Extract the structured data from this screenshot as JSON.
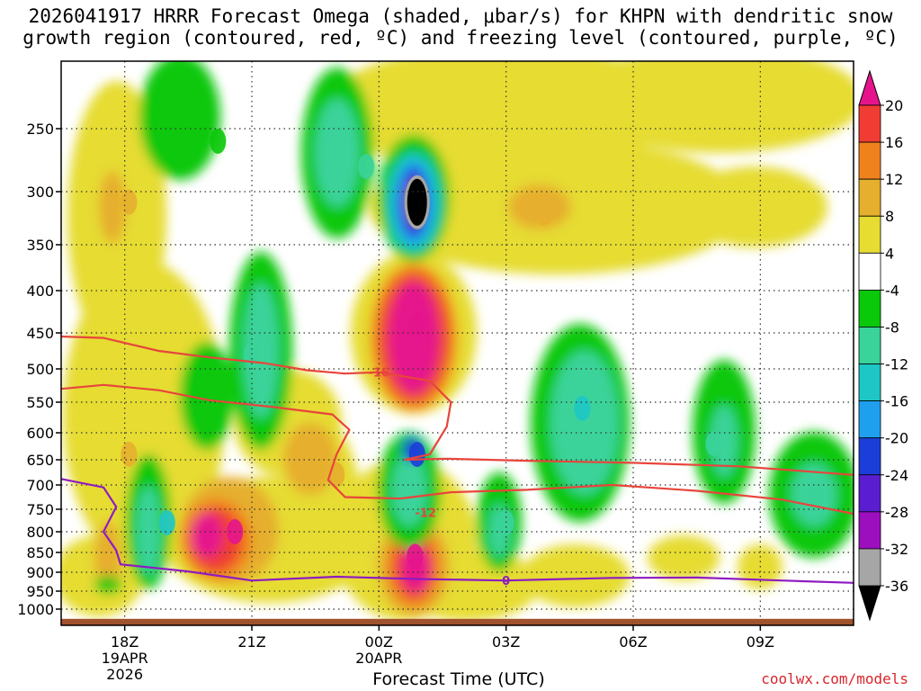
{
  "title": {
    "line1": "2026041917 HRRR Forecast Omega (shaded, μbar/s) for KHPN with dendritic snow",
    "line2": "growth region (contoured, red, ºC) and freezing level (contoured, purple, ºC)"
  },
  "credit": "coolwx.com/models",
  "chart_data": {
    "type": "heatmap",
    "title": "2026041917 HRRR Forecast Omega (shaded, μbar/s) for KHPN with dendritic snow growth region (contoured, red, ºC) and freezing level (contoured, purple, ºC)",
    "xlabel": "Forecast Time (UTC)",
    "ylabel": "",
    "x_range_hours": [
      16.5,
      35.2
    ],
    "x_ticks": [
      {
        "hour": 18,
        "label": "18Z",
        "sub1": "19APR",
        "sub2": "2026"
      },
      {
        "hour": 21,
        "label": "21Z",
        "sub1": "",
        "sub2": ""
      },
      {
        "hour": 24,
        "label": "00Z",
        "sub1": "20APR",
        "sub2": ""
      },
      {
        "hour": 27,
        "label": "03Z",
        "sub1": "",
        "sub2": ""
      },
      {
        "hour": 30,
        "label": "06Z",
        "sub1": "",
        "sub2": ""
      },
      {
        "hour": 33,
        "label": "09Z",
        "sub1": "",
        "sub2": ""
      }
    ],
    "y_range_hpa": [
      1025,
      200
    ],
    "y_ticks": [
      250,
      300,
      350,
      400,
      450,
      500,
      550,
      600,
      650,
      700,
      750,
      800,
      850,
      900,
      950,
      1000
    ],
    "colorbar": {
      "levels": [
        -36,
        -32,
        -28,
        -24,
        -20,
        -16,
        -12,
        -8,
        -4,
        4,
        8,
        12,
        16,
        20
      ],
      "colors": [
        "#000000",
        "#a6a6a6",
        "#9c0fbf",
        "#5a1ed0",
        "#1c3ed8",
        "#1fa0ef",
        "#1ec6c6",
        "#3ad39a",
        "#0ac80a",
        "#ffffff",
        "#e6dc32",
        "#e6af2d",
        "#f0821e",
        "#f03c32",
        "#e6148c"
      ]
    },
    "omega_features": [
      {
        "hour": 24.9,
        "p_hpa": 310,
        "value": -38
      },
      {
        "hour": 24.9,
        "p_hpa": 440,
        "value": 22
      },
      {
        "hour": 24.85,
        "p_hpa": 860,
        "value": 22
      },
      {
        "hour": 20.6,
        "p_hpa": 800,
        "value": 22
      },
      {
        "hour": 24.9,
        "p_hpa": 640,
        "value": -22
      },
      {
        "hour": 28.8,
        "p_hpa": 560,
        "value": -14
      },
      {
        "hour": 21.0,
        "p_hpa": 480,
        "value": -12
      },
      {
        "hour": 23.7,
        "p_hpa": 280,
        "value": -10
      },
      {
        "hour": 19.0,
        "p_hpa": 780,
        "value": -14
      },
      {
        "hour": 27.0,
        "p_hpa": 780,
        "value": -10
      },
      {
        "hour": 31.9,
        "p_hpa": 620,
        "value": -10
      },
      {
        "hour": 34.3,
        "p_hpa": 720,
        "value": -10
      },
      {
        "hour": 20.2,
        "p_hpa": 260,
        "value": -6
      },
      {
        "hour": 18.1,
        "p_hpa": 310,
        "value": 9
      },
      {
        "hour": 27.9,
        "p_hpa": 320,
        "value": 8
      },
      {
        "hour": 18.1,
        "p_hpa": 640,
        "value": 10
      },
      {
        "hour": 23.0,
        "p_hpa": 680,
        "value": 11
      }
    ],
    "contours": [
      {
        "name": "dgz-16-upper",
        "color": "#e8453c",
        "label": "-16",
        "label_hour": 24.0,
        "label_p_hpa": 505,
        "points": [
          [
            16.5,
            455
          ],
          [
            17.5,
            457
          ],
          [
            18.8,
            475
          ],
          [
            20.0,
            484
          ],
          [
            21.3,
            492
          ],
          [
            22.3,
            502
          ],
          [
            23.2,
            507
          ],
          [
            24.0,
            505
          ],
          [
            25.2,
            518
          ],
          [
            25.7,
            550
          ],
          [
            25.6,
            590
          ],
          [
            25.2,
            640
          ],
          [
            24.6,
            650
          ]
        ]
      },
      {
        "name": "dgz-16-lower",
        "color": "#e8453c",
        "label": "",
        "label_hour": 0,
        "label_p_hpa": 0,
        "points": [
          [
            16.5,
            530
          ],
          [
            17.5,
            524
          ],
          [
            18.8,
            532
          ],
          [
            20.0,
            547
          ],
          [
            21.5,
            558
          ],
          [
            22.9,
            570
          ],
          [
            23.3,
            595
          ],
          [
            23.0,
            640
          ],
          [
            22.8,
            690
          ],
          [
            23.2,
            725
          ],
          [
            24.5,
            728
          ],
          [
            25.7,
            715
          ],
          [
            27.5,
            710
          ],
          [
            29.5,
            700
          ],
          [
            31.5,
            712
          ],
          [
            33.5,
            730
          ],
          [
            35.2,
            760
          ]
        ]
      },
      {
        "name": "dgz-12-upper",
        "color": "#e8453c",
        "label": "-12",
        "label_hour": 25.1,
        "label_p_hpa": 757,
        "points": [
          [
            24.6,
            650
          ],
          [
            25.6,
            648
          ],
          [
            27.5,
            652
          ],
          [
            30.0,
            656
          ],
          [
            32.5,
            663
          ],
          [
            35.2,
            680
          ]
        ]
      },
      {
        "name": "freezing-level",
        "color": "#8e1bc2",
        "label": "0",
        "label_hour": 27.0,
        "label_p_hpa": 922,
        "points": [
          [
            16.5,
            688
          ],
          [
            17.5,
            705
          ],
          [
            17.8,
            745
          ],
          [
            17.5,
            800
          ],
          [
            17.8,
            845
          ],
          [
            17.9,
            880
          ],
          [
            19.5,
            898
          ],
          [
            21.0,
            922
          ],
          [
            23.0,
            912
          ],
          [
            25.0,
            918
          ],
          [
            27.0,
            922
          ],
          [
            29.5,
            915
          ],
          [
            31.5,
            914
          ],
          [
            33.5,
            922
          ],
          [
            35.2,
            928
          ]
        ]
      }
    ]
  }
}
